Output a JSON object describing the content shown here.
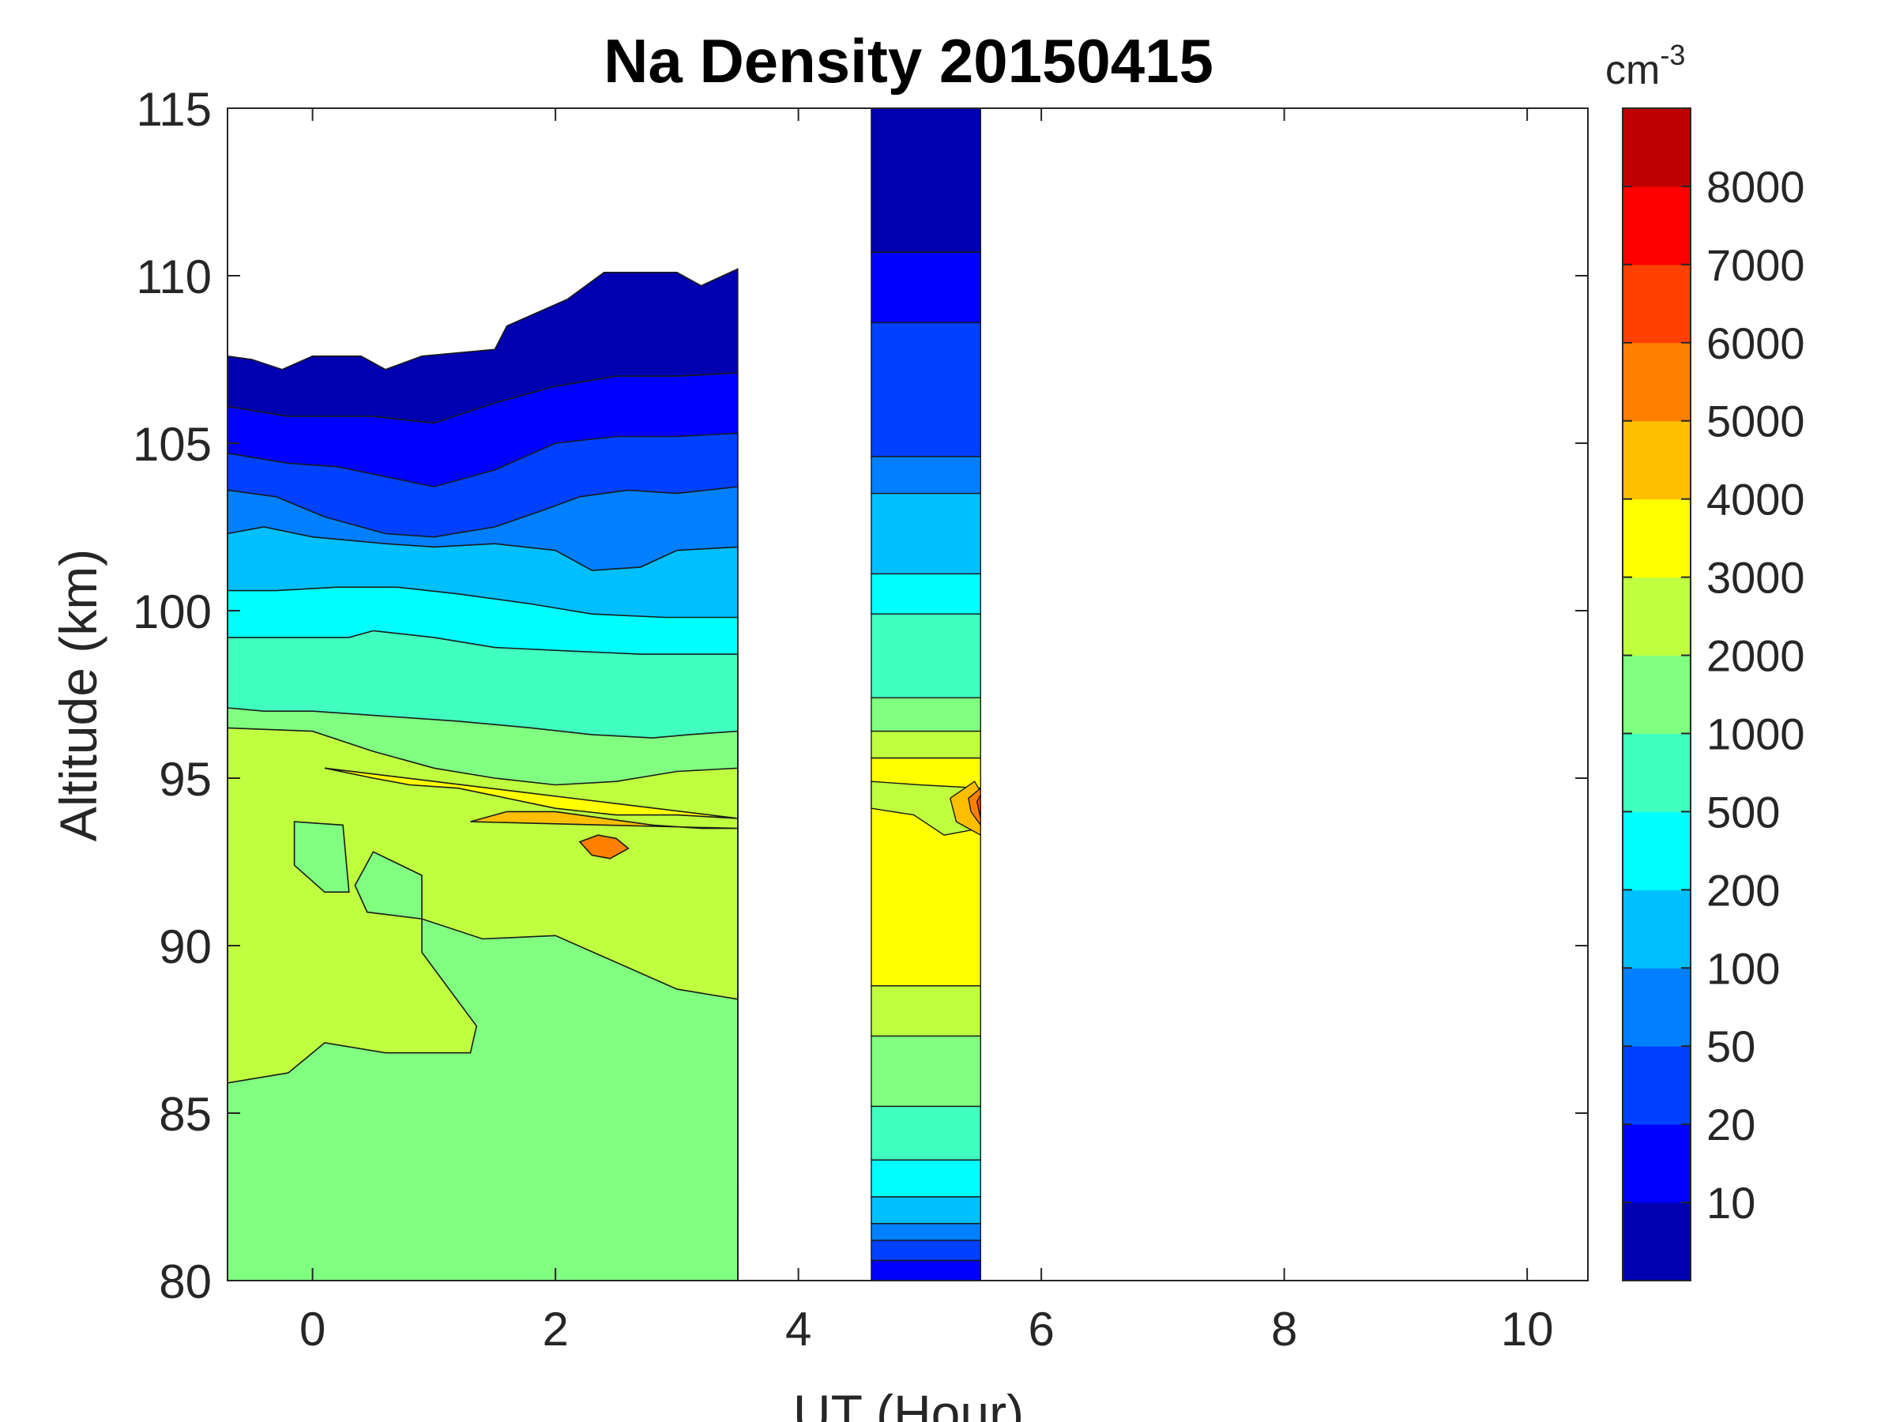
{
  "chart_data": {
    "type": "filled-contour",
    "title": "Na Density 20150415",
    "xlabel": "UT (Hour)",
    "ylabel": "Altitude (km)",
    "xlim": [
      -0.7,
      10.5
    ],
    "ylim": [
      80,
      115
    ],
    "x_ticks": [
      "0",
      "2",
      "4",
      "6",
      "8",
      "10"
    ],
    "y_ticks": [
      "80",
      "85",
      "90",
      "95",
      "100",
      "105",
      "110",
      "115"
    ],
    "data_coverage_hours": [
      [
        -0.7,
        3.5
      ],
      [
        4.6,
        5.5
      ]
    ],
    "colorbar": {
      "unit_base": "cm",
      "unit_exp": "-3",
      "level_labels": [
        "10",
        "20",
        "50",
        "100",
        "200",
        "500",
        "1000",
        "2000",
        "3000",
        "4000",
        "5000",
        "6000",
        "7000",
        "8000"
      ],
      "colors": [
        "#0000b0",
        "#0000ff",
        "#0040ff",
        "#0080ff",
        "#00bfff",
        "#00ffff",
        "#40ffbf",
        "#80ff80",
        "#bfff40",
        "#ffff00",
        "#ffbf00",
        "#ff8000",
        "#ff4000",
        "#ff0000",
        "#bf0000"
      ]
    },
    "bands": [
      {
        "label": "<10",
        "color": "#0000b0",
        "upper_boundary": [
          [
            -0.7,
            107.6
          ],
          [
            -0.5,
            107.5
          ],
          [
            -0.25,
            107.2
          ],
          [
            0,
            107.6
          ],
          [
            0.4,
            107.6
          ],
          [
            0.6,
            107.2
          ],
          [
            0.9,
            107.6
          ],
          [
            1.5,
            107.8
          ],
          [
            1.6,
            108.5
          ],
          [
            2.1,
            109.3
          ],
          [
            2.4,
            110.1
          ],
          [
            3.0,
            110.1
          ],
          [
            3.2,
            109.7
          ],
          [
            3.5,
            110.2
          ]
        ]
      },
      {
        "label": "10-20",
        "color": "#0000ff",
        "upper_boundary": [
          [
            -0.7,
            106.1
          ],
          [
            -0.2,
            105.8
          ],
          [
            0.5,
            105.8
          ],
          [
            1.0,
            105.6
          ],
          [
            1.5,
            106.2
          ],
          [
            2.0,
            106.7
          ],
          [
            2.5,
            107.0
          ],
          [
            3.0,
            107.0
          ],
          [
            3.5,
            107.1
          ]
        ]
      },
      {
        "label": "20-50",
        "color": "#0040ff",
        "upper_boundary": [
          [
            -0.7,
            104.7
          ],
          [
            -0.2,
            104.4
          ],
          [
            0.2,
            104.3
          ],
          [
            0.6,
            104.0
          ],
          [
            1.0,
            103.7
          ],
          [
            1.5,
            104.2
          ],
          [
            2.0,
            105.0
          ],
          [
            2.5,
            105.2
          ],
          [
            3.0,
            105.2
          ],
          [
            3.5,
            105.3
          ]
        ]
      },
      {
        "label": "50-100",
        "color": "#0080ff",
        "upper_boundary": [
          [
            -0.7,
            103.6
          ],
          [
            -0.3,
            103.4
          ],
          [
            0.1,
            102.8
          ],
          [
            0.6,
            102.3
          ],
          [
            1.0,
            102.2
          ],
          [
            1.5,
            102.5
          ],
          [
            1.9,
            103.0
          ],
          [
            2.2,
            103.4
          ],
          [
            2.6,
            103.6
          ],
          [
            3.0,
            103.5
          ],
          [
            3.5,
            103.7
          ]
        ]
      },
      {
        "label": "100-200",
        "color": "#00bfff",
        "upper_boundary": [
          [
            -0.7,
            102.3
          ],
          [
            -0.4,
            102.5
          ],
          [
            0,
            102.2
          ],
          [
            0.6,
            102.0
          ],
          [
            1.0,
            101.9
          ],
          [
            1.5,
            102.0
          ],
          [
            2.0,
            101.8
          ],
          [
            2.3,
            101.2
          ],
          [
            2.7,
            101.3
          ],
          [
            3.0,
            101.8
          ],
          [
            3.5,
            101.9
          ]
        ]
      },
      {
        "label": "200-500",
        "color": "#00ffff",
        "upper_boundary": [
          [
            -0.7,
            100.6
          ],
          [
            -0.3,
            100.6
          ],
          [
            0.2,
            100.7
          ],
          [
            0.7,
            100.7
          ],
          [
            1.2,
            100.5
          ],
          [
            1.8,
            100.2
          ],
          [
            2.3,
            99.9
          ],
          [
            2.9,
            99.8
          ],
          [
            3.5,
            99.8
          ]
        ]
      },
      {
        "label": "500-1000",
        "color": "#40ffbf",
        "upper_boundary": [
          [
            -0.7,
            99.2
          ],
          [
            0,
            99.2
          ],
          [
            0.3,
            99.2
          ],
          [
            0.5,
            99.4
          ],
          [
            1.0,
            99.2
          ],
          [
            1.5,
            98.9
          ],
          [
            2.1,
            98.8
          ],
          [
            2.7,
            98.7
          ],
          [
            3.5,
            98.7
          ]
        ]
      },
      {
        "label": "1000-2000",
        "color": "#80ff80",
        "upper_boundary": [
          [
            -0.7,
            97.1
          ],
          [
            -0.4,
            97.0
          ],
          [
            0,
            97.0
          ],
          [
            0.4,
            96.9
          ],
          [
            0.8,
            96.8
          ],
          [
            1.2,
            96.7
          ],
          [
            1.8,
            96.5
          ],
          [
            2.3,
            96.3
          ],
          [
            2.8,
            96.2
          ],
          [
            3.1,
            96.3
          ],
          [
            3.5,
            96.4
          ]
        ]
      },
      {
        "label": "2000-3000",
        "color": "#bfff40",
        "upper_boundary": [
          [
            -0.7,
            96.5
          ],
          [
            0,
            96.4
          ],
          [
            0.5,
            95.8
          ],
          [
            1.0,
            95.3
          ],
          [
            1.5,
            95.0
          ],
          [
            2.0,
            94.8
          ],
          [
            2.5,
            94.9
          ],
          [
            3.0,
            95.2
          ],
          [
            3.5,
            95.3
          ]
        ]
      },
      {
        "label": "3000-4000",
        "color": "#ffff00",
        "upper_boundary": [
          [
            0.1,
            95.3
          ],
          [
            0.5,
            95.0
          ],
          [
            0.8,
            94.8
          ],
          [
            1.2,
            94.7
          ],
          [
            1.6,
            94.4
          ],
          [
            2.0,
            94.1
          ],
          [
            2.5,
            93.9
          ],
          [
            3.0,
            93.9
          ],
          [
            3.5,
            93.8
          ]
        ]
      },
      {
        "label": "4000-5000",
        "color": "#ffbf00",
        "upper_boundary": [
          [
            1.3,
            93.7
          ],
          [
            1.6,
            94.0
          ],
          [
            2.0,
            94.0
          ],
          [
            2.4,
            93.8
          ],
          [
            2.8,
            93.6
          ],
          [
            3.2,
            93.5
          ],
          [
            3.5,
            93.5
          ]
        ]
      },
      {
        "label": "5000-6000",
        "color": "#ff8000",
        "upper_boundary": [
          [
            2.2,
            93.1
          ],
          [
            2.35,
            93.3
          ],
          [
            2.5,
            93.2
          ],
          [
            2.6,
            92.9
          ],
          [
            2.45,
            92.6
          ],
          [
            2.3,
            92.7
          ]
        ]
      }
    ]
  }
}
